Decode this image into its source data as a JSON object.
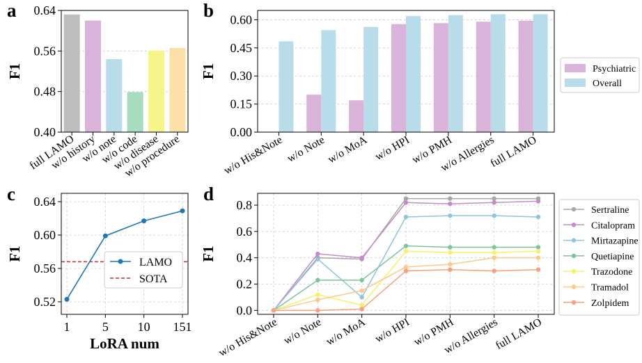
{
  "panels": {
    "a": {
      "letter": "a"
    },
    "b": {
      "letter": "b"
    },
    "c": {
      "letter": "c"
    },
    "d": {
      "letter": "d"
    }
  },
  "chart_data": [
    {
      "id": "a",
      "type": "bar",
      "ylabel": "F1",
      "ylim": [
        0.4,
        0.64
      ],
      "yticks": [
        0.4,
        0.48,
        0.56,
        0.64
      ],
      "ytick_labels": [
        "0.40",
        "0.48",
        "0.56",
        "0.64"
      ],
      "categories": [
        "full LAMO",
        "w/o history",
        "w/o note",
        "w/o code",
        "w/o disease",
        "w/o procedure"
      ],
      "values": [
        0.632,
        0.62,
        0.544,
        0.479,
        0.561,
        0.566
      ],
      "colors": [
        "#bdbdbd",
        "#d9b3d9",
        "#b8dcea",
        "#a8dcbf",
        "#f5f58a",
        "#fde0a8"
      ],
      "grid": true
    },
    {
      "id": "b",
      "type": "bar",
      "ylabel": "F1",
      "ylim": [
        0.0,
        0.65
      ],
      "yticks": [
        0.0,
        0.15,
        0.3,
        0.45,
        0.6
      ],
      "ytick_labels": [
        "0.00",
        "0.15",
        "0.30",
        "0.45",
        "0.60"
      ],
      "categories": [
        "w/o His&Note",
        "w/o Note",
        "w/o MoA",
        "w/o HPI",
        "w/o PMH",
        "w/o Allergies",
        "full LAMO"
      ],
      "series": [
        {
          "name": "Psychiatric",
          "color": "#d9b3d9",
          "values": [
            0.0,
            0.2,
            0.17,
            0.577,
            0.582,
            0.59,
            0.595
          ]
        },
        {
          "name": "Overall",
          "color": "#b8dcea",
          "values": [
            0.485,
            0.545,
            0.562,
            0.62,
            0.625,
            0.63,
            0.63
          ]
        }
      ],
      "legend": "right",
      "grid": true
    },
    {
      "id": "c",
      "type": "line",
      "ylabel": "F1",
      "xlabel": "LoRA num",
      "x": [
        "1",
        "5",
        "10",
        "151"
      ],
      "ylim": [
        0.505,
        0.65
      ],
      "yticks": [
        0.52,
        0.56,
        0.6,
        0.64
      ],
      "ytick_labels": [
        "0.52",
        "0.56",
        "0.60",
        "0.64"
      ],
      "series": [
        {
          "name": "LAMO",
          "color": "#1f77b4",
          "values": [
            0.523,
            0.599,
            0.617,
            0.629
          ]
        }
      ],
      "hline": {
        "name": "SOTA",
        "value": 0.568,
        "color": "#d62728"
      },
      "legend": "lower-right",
      "grid": true
    },
    {
      "id": "d",
      "type": "line",
      "ylabel": "F1",
      "categories": [
        "w/o His&Note",
        "w/o Note",
        "w/o MoA",
        "w/o HPI",
        "w/o PMH",
        "w/o Allergies",
        "full LAMO"
      ],
      "ylim": [
        -0.03,
        0.89
      ],
      "yticks": [
        0.0,
        0.2,
        0.4,
        0.6,
        0.8
      ],
      "ytick_labels": [
        "0.0",
        "0.2",
        "0.4",
        "0.6",
        "0.8"
      ],
      "series": [
        {
          "name": "Sertraline",
          "color": "#a6a6a6",
          "values": [
            0.0,
            0.4,
            0.39,
            0.85,
            0.85,
            0.85,
            0.85
          ]
        },
        {
          "name": "Citalopram",
          "color": "#c58ac9",
          "values": [
            0.0,
            0.43,
            0.4,
            0.82,
            0.81,
            0.82,
            0.83
          ]
        },
        {
          "name": "Mirtazapine",
          "color": "#8fc4dd",
          "values": [
            0.0,
            0.39,
            0.1,
            0.71,
            0.72,
            0.72,
            0.71
          ]
        },
        {
          "name": "Quetiapine",
          "color": "#7cc69a",
          "values": [
            0.0,
            0.23,
            0.23,
            0.49,
            0.48,
            0.48,
            0.48
          ]
        },
        {
          "name": "Trazodone",
          "color": "#f3f36a",
          "values": [
            0.0,
            0.12,
            0.04,
            0.45,
            0.44,
            0.44,
            0.45
          ]
        },
        {
          "name": "Tramadol",
          "color": "#fdc98a",
          "values": [
            0.0,
            0.08,
            0.15,
            0.33,
            0.35,
            0.4,
            0.4
          ]
        },
        {
          "name": "Zolpidem",
          "color": "#f8a07c",
          "values": [
            0.0,
            0.0,
            0.01,
            0.3,
            0.31,
            0.3,
            0.31
          ]
        }
      ],
      "legend": "right",
      "grid": true
    }
  ]
}
